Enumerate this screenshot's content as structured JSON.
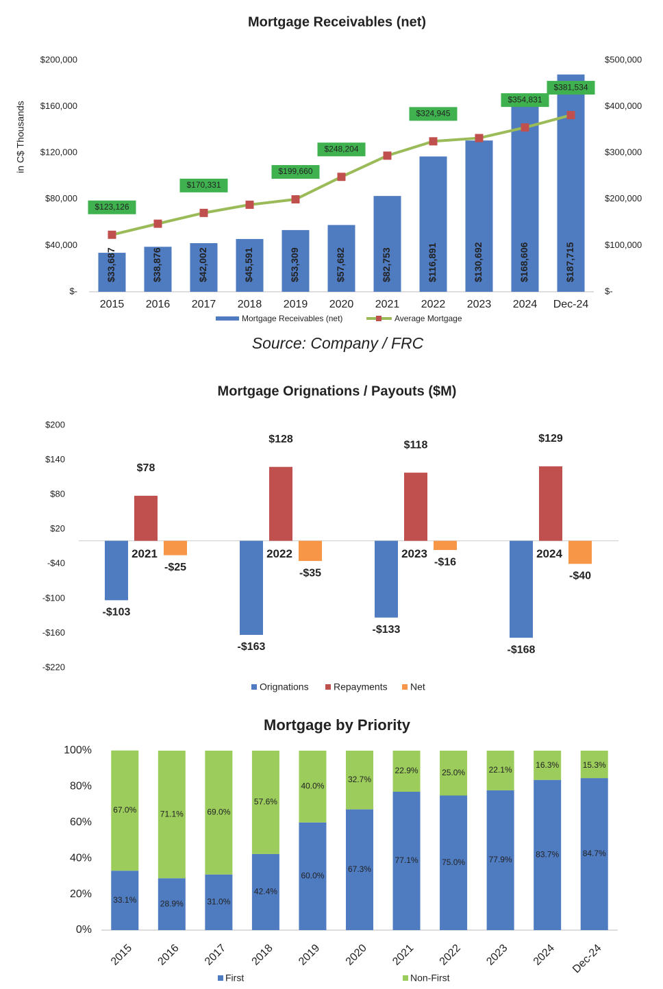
{
  "chart_data": [
    {
      "type": "bar",
      "title": "Mortgage Receivables (net)",
      "y_label": "in C$ Thousands",
      "source": "Source: Company / FRC",
      "categories": [
        "2015",
        "2016",
        "2017",
        "2018",
        "2019",
        "2020",
        "2021",
        "2022",
        "2023",
        "2024",
        "Dec-24"
      ],
      "series": [
        {
          "name": "Mortgage Receivables (net)",
          "type": "bar",
          "color": "#4f7bc0",
          "values": [
            33687,
            38876,
            42002,
            45591,
            53309,
            57682,
            82753,
            116891,
            130692,
            168606,
            187715
          ],
          "value_labels": [
            "$33,687",
            "$38,876",
            "$42,002",
            "$45,591",
            "$53,309",
            "$57,682",
            "$82,753",
            "$116,891",
            "$130,692",
            "$168,606",
            "$187,715"
          ]
        },
        {
          "name": "Average Mortgage",
          "type": "line",
          "axis": "y2",
          "color": "#9bbb59",
          "marker_color": "#c0504d",
          "values": [
            123126,
            147000,
            170331,
            188000,
            199660,
            248204,
            294000,
            324945,
            332000,
            354831,
            381534
          ],
          "value_labels": [
            "$123,126",
            null,
            "$170,331",
            null,
            "$199,660",
            "$248,204",
            null,
            "$324,945",
            null,
            "$354,831",
            "$381,534"
          ]
        }
      ],
      "ylim": [
        0,
        200000
      ],
      "yticks": [
        {
          "value": 0,
          "label": "$-"
        },
        {
          "value": 40000,
          "label": "$40,000"
        },
        {
          "value": 80000,
          "label": "$80,000"
        },
        {
          "value": 120000,
          "label": "$120,000"
        },
        {
          "value": 160000,
          "label": "$160,000"
        },
        {
          "value": 200000,
          "label": "$200,000"
        }
      ],
      "y2lim": [
        0,
        500000
      ],
      "y2ticks": [
        {
          "value": 0,
          "label": "$-"
        },
        {
          "value": 100000,
          "label": "$100,000"
        },
        {
          "value": 200000,
          "label": "$200,000"
        },
        {
          "value": 300000,
          "label": "$300,000"
        },
        {
          "value": 400000,
          "label": "$400,000"
        },
        {
          "value": 500000,
          "label": "$500,000"
        }
      ],
      "grid": false,
      "legend": "bottom"
    },
    {
      "type": "grouped_bar",
      "title": "Mortgage Orignations / Payouts ($M)",
      "categories": [
        "2021",
        "2022",
        "2023",
        "2024"
      ],
      "series": [
        {
          "name": "Orignations",
          "color": "#4f7bc0",
          "values": [
            -103,
            -163,
            -133,
            -168
          ],
          "value_labels": [
            "-$103",
            "-$163",
            "-$133",
            "-$168"
          ]
        },
        {
          "name": "Repayments",
          "color": "#c0504d",
          "values": [
            78,
            128,
            118,
            129
          ],
          "value_labels": [
            "$78",
            "$128",
            "$118",
            "$129"
          ]
        },
        {
          "name": "Net",
          "color": "#f79646",
          "values": [
            -25,
            -35,
            -16,
            -40
          ],
          "value_labels": [
            "-$25",
            "-$35",
            "-$16",
            "-$40"
          ]
        }
      ],
      "ylim": [
        -220,
        200
      ],
      "yticks": [
        {
          "value": -220,
          "label": "-$220"
        },
        {
          "value": -160,
          "label": "-$160"
        },
        {
          "value": -100,
          "label": "-$100"
        },
        {
          "value": -40,
          "label": "-$40"
        },
        {
          "value": 20,
          "label": "$20"
        },
        {
          "value": 80,
          "label": "$80"
        },
        {
          "value": 140,
          "label": "$140"
        },
        {
          "value": 200,
          "label": "$200"
        }
      ],
      "grid": false,
      "legend": "bottom"
    },
    {
      "type": "stacked_bar",
      "title": "Mortgage by Priority",
      "categories": [
        "2015",
        "2016",
        "2017",
        "2018",
        "2019",
        "2020",
        "2021",
        "2022",
        "2023",
        "2024",
        "Dec-24"
      ],
      "series": [
        {
          "name": "First",
          "color": "#4f7bc0",
          "values": [
            33.1,
            28.9,
            31.0,
            42.4,
            60.0,
            67.3,
            77.1,
            75.0,
            77.9,
            83.7,
            84.7
          ],
          "value_labels": [
            "33.1%",
            "28.9%",
            "31.0%",
            "42.4%",
            "60.0%",
            "67.3%",
            "77.1%",
            "75.0%",
            "77.9%",
            "83.7%",
            "84.7%"
          ]
        },
        {
          "name": "Non-First",
          "color": "#9bcc5c",
          "values": [
            67.0,
            71.1,
            69.0,
            57.6,
            40.0,
            32.7,
            22.9,
            25.0,
            22.1,
            16.3,
            15.3
          ],
          "value_labels": [
            "67.0%",
            "71.1%",
            "69.0%",
            "57.6%",
            "40.0%",
            "32.7%",
            "22.9%",
            "25.0%",
            "22.1%",
            "16.3%",
            "15.3%"
          ]
        }
      ],
      "ylim": [
        0,
        100
      ],
      "yticks": [
        {
          "value": 0,
          "label": "0%"
        },
        {
          "value": 20,
          "label": "20%"
        },
        {
          "value": 40,
          "label": "40%"
        },
        {
          "value": 60,
          "label": "60%"
        },
        {
          "value": 80,
          "label": "80%"
        },
        {
          "value": 100,
          "label": "100%"
        }
      ],
      "grid": false,
      "legend": "bottom"
    }
  ]
}
